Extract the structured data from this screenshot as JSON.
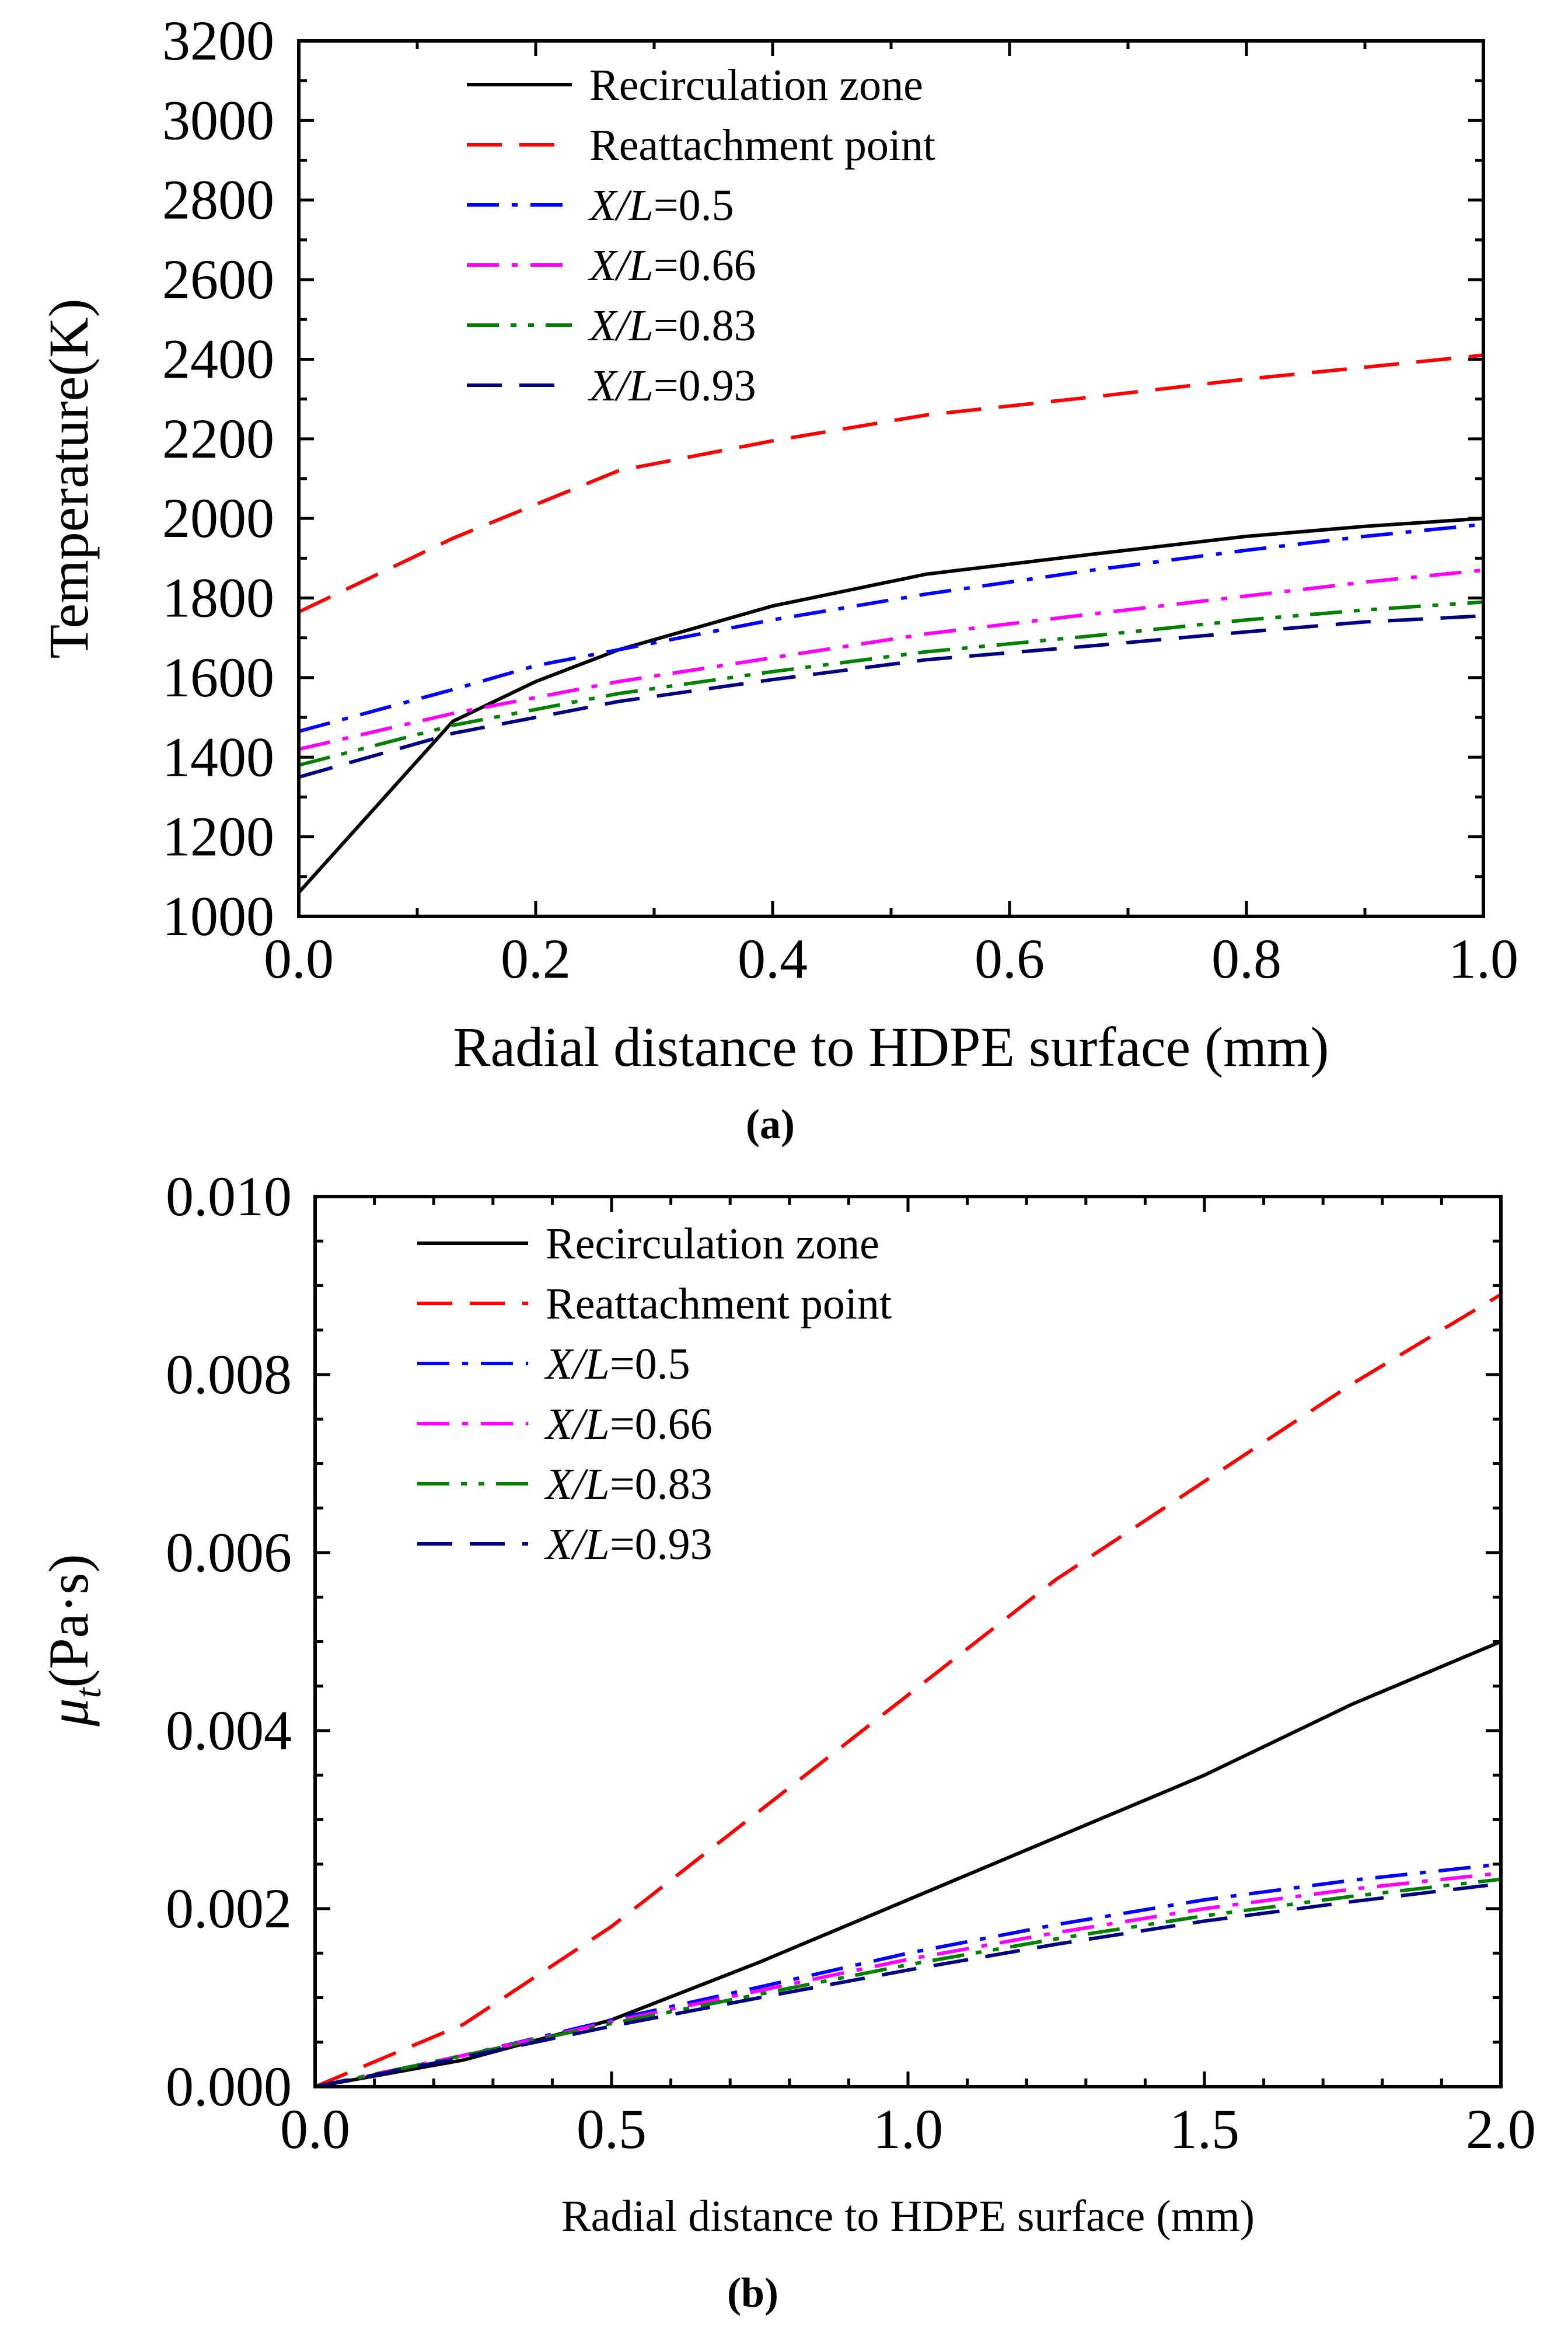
{
  "chart_data": [
    {
      "type": "line",
      "panel_label": "(a)",
      "xlabel": "Radial distance to HDPE surface (mm)",
      "ylabel": "Temperature(K)",
      "xlim": [
        0.0,
        1.0
      ],
      "ylim": [
        1000,
        3200
      ],
      "xticks": [
        "0.0",
        "0.2",
        "0.4",
        "0.6",
        "0.8",
        "1.0"
      ],
      "xtick_values": [
        0.0,
        0.2,
        0.4,
        0.6,
        0.8,
        1.0
      ],
      "yticks": [
        "1000",
        "1200",
        "1400",
        "1600",
        "1800",
        "2000",
        "2200",
        "2400",
        "2600",
        "2800",
        "3000",
        "3200"
      ],
      "ytick_values": [
        1000,
        1200,
        1400,
        1600,
        1800,
        2000,
        2200,
        2400,
        2600,
        2800,
        3000,
        3200
      ],
      "legend_position": "top-left",
      "series": [
        {
          "name": "Recirculation zone",
          "label_main": "Recirculation zone",
          "label_var": "",
          "color": "#000000",
          "dash": "solid",
          "x": [
            0.0,
            0.13,
            0.2,
            0.27,
            0.4,
            0.53,
            0.67,
            0.8,
            0.9,
            1.0
          ],
          "y": [
            1060,
            1490,
            1590,
            1670,
            1780,
            1860,
            1910,
            1955,
            1980,
            2000
          ]
        },
        {
          "name": "Reattachment point",
          "label_main": "Reattachment point",
          "label_var": "",
          "color": "#ff0000",
          "dash": "dash",
          "x": [
            0.0,
            0.13,
            0.27,
            0.4,
            0.53,
            0.67,
            0.8,
            0.9,
            1.0
          ],
          "y": [
            1765,
            1950,
            2120,
            2195,
            2260,
            2305,
            2350,
            2380,
            2410
          ]
        },
        {
          "name": "X/L=0.5",
          "label_main": "X/L",
          "label_var": "=0.5",
          "color": "#0000ff",
          "dash": "dashdot",
          "x": [
            0.0,
            0.13,
            0.2,
            0.27,
            0.4,
            0.53,
            0.67,
            0.8,
            0.9,
            1.0
          ],
          "y": [
            1465,
            1570,
            1630,
            1670,
            1745,
            1810,
            1870,
            1920,
            1955,
            1985
          ]
        },
        {
          "name": "X/L=0.66",
          "label_main": "X/L",
          "label_var": "=0.66",
          "color": "#ff00ff",
          "dash": "dashdot",
          "x": [
            0.0,
            0.13,
            0.27,
            0.4,
            0.53,
            0.67,
            0.8,
            0.9,
            1.0
          ],
          "y": [
            1420,
            1510,
            1590,
            1650,
            1710,
            1760,
            1805,
            1840,
            1870
          ]
        },
        {
          "name": "X/L=0.83",
          "label_main": "X/L",
          "label_var": "=0.83",
          "color": "#008000",
          "dash": "dashdotdot",
          "x": [
            0.0,
            0.13,
            0.27,
            0.4,
            0.53,
            0.67,
            0.8,
            0.9,
            1.0
          ],
          "y": [
            1380,
            1480,
            1560,
            1615,
            1665,
            1705,
            1745,
            1770,
            1790
          ]
        },
        {
          "name": "X/L=0.93",
          "label_main": "X/L",
          "label_var": "=0.93",
          "color": "#000080",
          "dash": "dash",
          "x": [
            0.0,
            0.13,
            0.27,
            0.4,
            0.53,
            0.67,
            0.8,
            0.9,
            1.0
          ],
          "y": [
            1350,
            1460,
            1540,
            1595,
            1645,
            1680,
            1715,
            1740,
            1755
          ]
        }
      ]
    },
    {
      "type": "line",
      "panel_label": "(b)",
      "xlabel": "Radial distance to HDPE surface (mm)",
      "ylabel_main": "μ",
      "ylabel_sub": "t",
      "ylabel_unit": "(Pa·s)",
      "xlim": [
        0.0,
        2.0
      ],
      "ylim": [
        0.0,
        0.01
      ],
      "xticks": [
        "0.0",
        "0.5",
        "1.0",
        "1.5",
        "2.0"
      ],
      "xtick_values": [
        0.0,
        0.5,
        1.0,
        1.5,
        2.0
      ],
      "yticks": [
        "0.000",
        "0.002",
        "0.004",
        "0.006",
        "0.008",
        "0.010"
      ],
      "ytick_values": [
        0.0,
        0.002,
        0.004,
        0.006,
        0.008,
        0.01
      ],
      "legend_position": "top-left",
      "series": [
        {
          "name": "Recirculation zone",
          "label_main": "Recirculation zone",
          "label_var": "",
          "color": "#000000",
          "dash": "solid",
          "x": [
            0.0,
            0.25,
            0.5,
            0.75,
            1.0,
            1.25,
            1.5,
            1.75,
            2.0
          ],
          "y": [
            0.0,
            0.0003,
            0.00075,
            0.0014,
            0.0021,
            0.0028,
            0.0035,
            0.0043,
            0.005
          ]
        },
        {
          "name": "Reattachment point",
          "label_main": "Reattachment point",
          "label_var": "",
          "color": "#ff0000",
          "dash": "dash",
          "x": [
            0.0,
            0.25,
            0.5,
            0.75,
            1.0,
            1.25,
            1.5,
            1.75,
            2.0
          ],
          "y": [
            0.0,
            0.0007,
            0.0018,
            0.0031,
            0.0044,
            0.0057,
            0.0068,
            0.0079,
            0.0089
          ]
        },
        {
          "name": "X/L=0.5",
          "label_main": "X/L",
          "label_var": "=0.5",
          "color": "#0000ff",
          "dash": "dashdot",
          "x": [
            0.0,
            0.25,
            0.5,
            0.75,
            1.0,
            1.25,
            1.5,
            1.75,
            2.0
          ],
          "y": [
            0.0,
            0.00035,
            0.00075,
            0.00112,
            0.0015,
            0.00182,
            0.0021,
            0.00232,
            0.0025
          ]
        },
        {
          "name": "X/L=0.66",
          "label_main": "X/L",
          "label_var": "=0.66",
          "color": "#ff00ff",
          "dash": "dashdot",
          "x": [
            0.0,
            0.25,
            0.5,
            0.75,
            1.0,
            1.25,
            1.5,
            1.75,
            2.0
          ],
          "y": [
            0.0,
            0.00035,
            0.00073,
            0.00108,
            0.00143,
            0.00173,
            0.002,
            0.00222,
            0.0024
          ]
        },
        {
          "name": "X/L=0.83",
          "label_main": "X/L",
          "label_var": "=0.83",
          "color": "#008000",
          "dash": "dashdotdot",
          "x": [
            0.0,
            0.25,
            0.5,
            0.75,
            1.0,
            1.25,
            1.5,
            1.75,
            2.0
          ],
          "y": [
            0.0,
            0.00035,
            0.00071,
            0.00104,
            0.00137,
            0.00166,
            0.00192,
            0.00214,
            0.00233
          ]
        },
        {
          "name": "X/L=0.93",
          "label_main": "X/L",
          "label_var": "=0.93",
          "color": "#000080",
          "dash": "dash",
          "x": [
            0.0,
            0.25,
            0.5,
            0.75,
            1.0,
            1.25,
            1.5,
            1.75,
            2.0
          ],
          "y": [
            0.0,
            0.00033,
            0.00068,
            0.001,
            0.00131,
            0.0016,
            0.00186,
            0.00208,
            0.00228
          ]
        }
      ]
    }
  ]
}
